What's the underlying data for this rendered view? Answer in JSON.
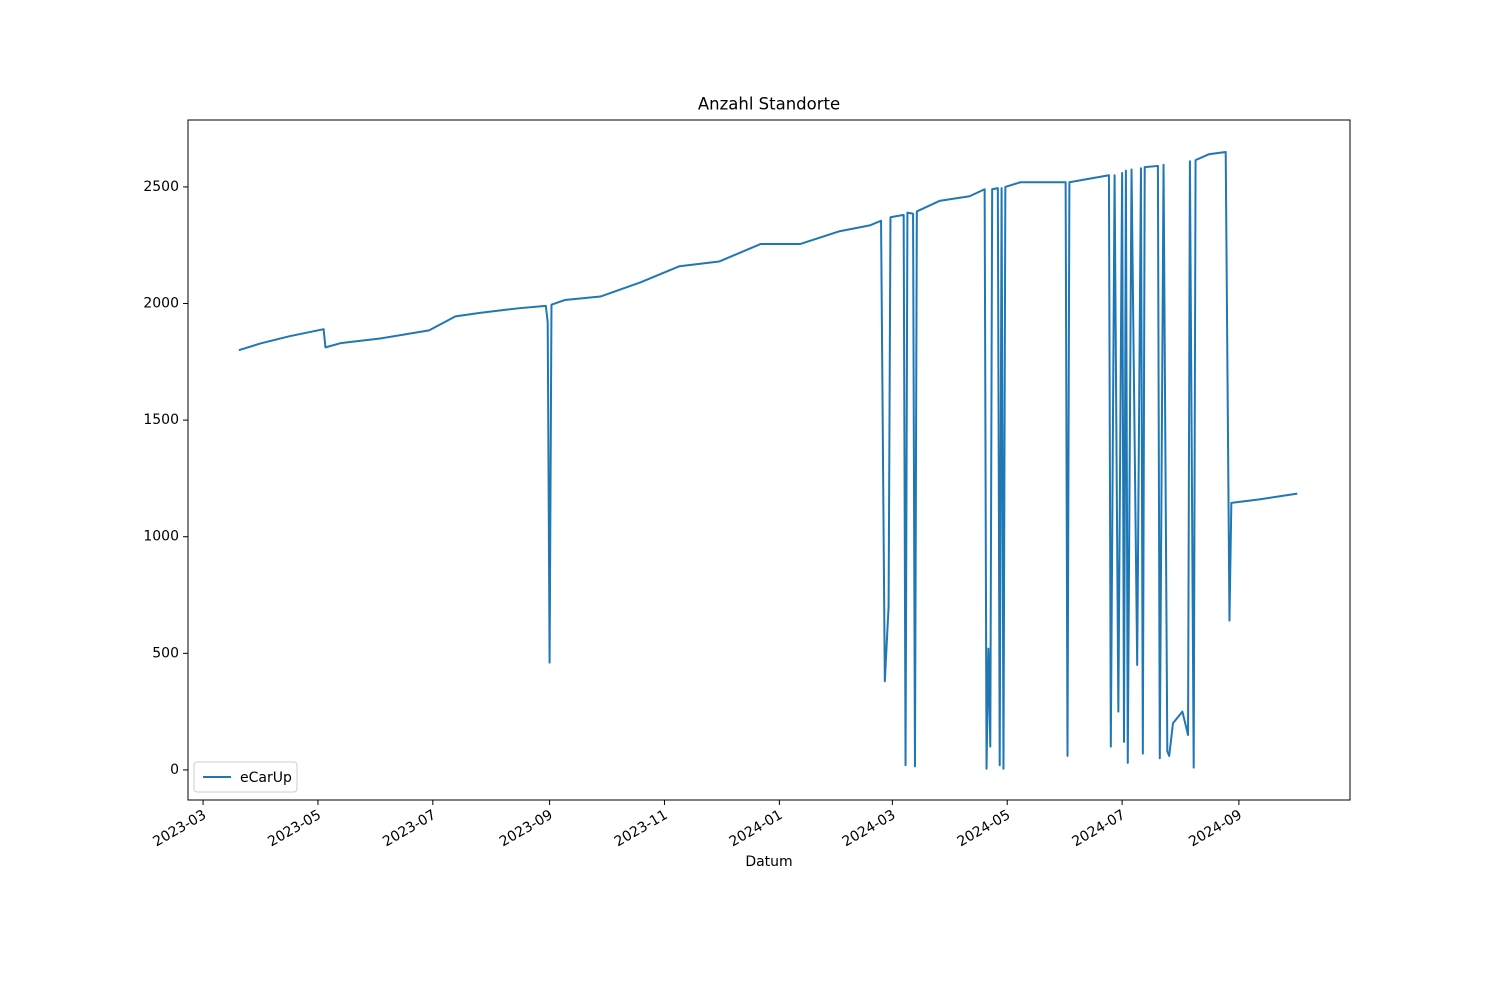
{
  "chart_data": {
    "type": "line",
    "title": "Anzahl Standorte",
    "xlabel": "Datum",
    "x": [
      "2023-03-20",
      "2023-04-01",
      "2023-04-16",
      "2023-05-04",
      "2023-05-05",
      "2023-05-13",
      "2023-06-03",
      "2023-06-29",
      "2023-07-13",
      "2023-07-26",
      "2023-08-16",
      "2023-08-30",
      "2023-08-31",
      "2023-09-01",
      "2023-09-02",
      "2023-09-09",
      "2023-09-28",
      "2023-10-19",
      "2023-11-09",
      "2023-11-30",
      "2023-12-22",
      "2024-01-12",
      "2024-02-02",
      "2024-02-18",
      "2024-02-24",
      "2024-02-26",
      "2024-02-28",
      "2024-02-29",
      "2024-03-07",
      "2024-03-08",
      "2024-03-09",
      "2024-03-12",
      "2024-03-13",
      "2024-03-14",
      "2024-03-26",
      "2024-04-11",
      "2024-04-19",
      "2024-04-20",
      "2024-04-21",
      "2024-04-22",
      "2024-04-23",
      "2024-04-26",
      "2024-04-27",
      "2024-04-28",
      "2024-04-29",
      "2024-04-30",
      "2024-05-08",
      "2024-06-01",
      "2024-06-02",
      "2024-06-03",
      "2024-06-24",
      "2024-06-25",
      "2024-06-27",
      "2024-06-29",
      "2024-07-01",
      "2024-07-02",
      "2024-07-03",
      "2024-07-04",
      "2024-07-06",
      "2024-07-09",
      "2024-07-11",
      "2024-07-12",
      "2024-07-13",
      "2024-07-20",
      "2024-07-21",
      "2024-07-23",
      "2024-07-25",
      "2024-07-26",
      "2024-07-28",
      "2024-07-31",
      "2024-08-02",
      "2024-08-05",
      "2024-08-06",
      "2024-08-08",
      "2024-08-09",
      "2024-08-16",
      "2024-08-25",
      "2024-08-27",
      "2024-08-28",
      "2024-09-12",
      "2024-10-02"
    ],
    "series": [
      {
        "name": "eCarUp",
        "color": "#1f77b4",
        "values": [
          1800,
          1830,
          1860,
          1890,
          1812,
          1830,
          1850,
          1885,
          1945,
          1960,
          1980,
          1990,
          1920,
          460,
          1995,
          2015,
          2030,
          2090,
          2160,
          2180,
          2255,
          2255,
          2310,
          2335,
          2355,
          380,
          700,
          2370,
          2380,
          20,
          2390,
          2385,
          15,
          2395,
          2440,
          2460,
          2490,
          5,
          520,
          100,
          2490,
          2495,
          20,
          2495,
          5,
          2500,
          2520,
          2520,
          60,
          2520,
          2550,
          100,
          2550,
          250,
          2560,
          120,
          2570,
          30,
          2575,
          450,
          2580,
          70,
          2585,
          2590,
          50,
          2595,
          80,
          60,
          200,
          230,
          250,
          150,
          2610,
          10,
          2615,
          2640,
          2650,
          640,
          1145,
          1160,
          1185
        ]
      }
    ],
    "xlim": [
      "2023-02-21",
      "2024-10-30"
    ],
    "xticks": [
      "2023-03",
      "2023-05",
      "2023-07",
      "2023-09",
      "2023-11",
      "2024-01",
      "2024-03",
      "2024-05",
      "2024-07",
      "2024-09"
    ],
    "ylim": [
      -129,
      2787
    ],
    "yticks": [
      0,
      500,
      1000,
      1500,
      2000,
      2500
    ],
    "legend": "lower left",
    "grid": false
  }
}
